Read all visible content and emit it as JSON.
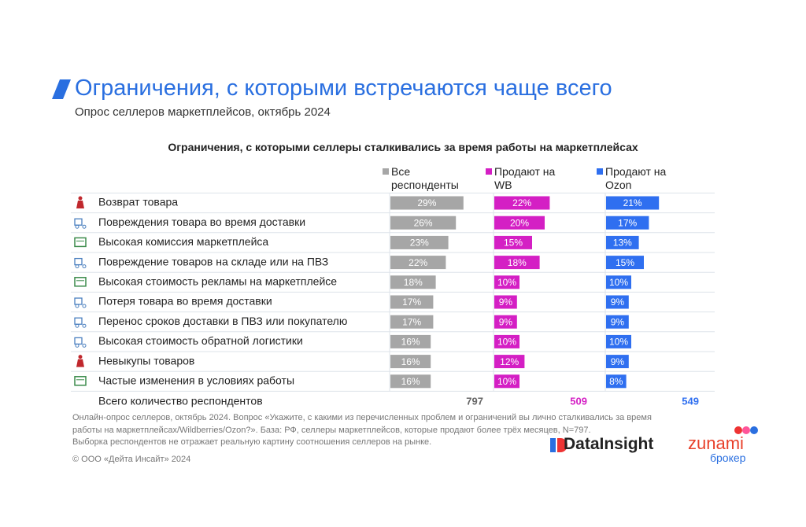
{
  "header": {
    "title": "Ограничения, с которыми встречаются чаще всего",
    "subtitle": "Опрос селлеров маркетплейсов, октябрь 2024"
  },
  "chart_data": {
    "type": "bar",
    "title": "Ограничения, с которыми селлеры сталкивались за время работы на маркетплейсах",
    "categories": [
      "Возврат товара",
      "Повреждения товара во время доставки",
      "Высокая комиссия маркетплейса",
      "Повреждение товаров на складе или на ПВЗ",
      "Высокая стоимость рекламы на маркетплейсе",
      "Потеря товара во время доставки",
      "Перенос сроков доставки в ПВЗ или покупателю",
      "Высокая стоимость обратной логистики",
      "Невыкупы товаров",
      "Частые изменения в условиях работы"
    ],
    "total_label": "Всего количество респондентов",
    "series": [
      {
        "name": "Все респонденты",
        "color": "#a6a6a6",
        "respondents": 797,
        "values": [
          29,
          26,
          23,
          22,
          18,
          17,
          17,
          16,
          16,
          16
        ],
        "value_labels": [
          "29%",
          "26%",
          "23%",
          "22%",
          "18%",
          "17%",
          "17%",
          "16%",
          "16%",
          "16%"
        ]
      },
      {
        "name": "Продают на WB",
        "color": "#d41fc4",
        "respondents": 509,
        "values": [
          22,
          20,
          15,
          18,
          10,
          9,
          9,
          10,
          12,
          10
        ],
        "value_labels": [
          "22%",
          "20%",
          "15%",
          "18%",
          "10%",
          "9%",
          "9%",
          "10%",
          "12%",
          "10%"
        ]
      },
      {
        "name": "Продают на Ozon",
        "color": "#2f6ff0",
        "respondents": 549,
        "values": [
          21,
          17,
          13,
          15,
          10,
          9,
          9,
          10,
          9,
          8
        ],
        "value_labels": [
          "21%",
          "17%",
          "13%",
          "15%",
          "10%",
          "9%",
          "9%",
          "10%",
          "9%",
          "8%"
        ]
      }
    ]
  },
  "footer": {
    "note": [
      "Онлайн-опрос селлеров, октябрь 2024. Вопрос «Укажите, с какими из перечисленных проблем и ограничений вы лично сталкивались за время",
      "работы на маркетплейсах/Wildberries/Ozon?». База: РФ, селлеры маркетплейсов, которые продают более трёх месяцев, N=797.",
      "Выборка респондентов не отражает реальную картину соотношения селлеров на рынке."
    ],
    "copyright": "© ООО «Дейта Инсайт» 2024",
    "logo1": "DataInsight",
    "logo2": "zunami",
    "logo2_sub": "брокер"
  }
}
